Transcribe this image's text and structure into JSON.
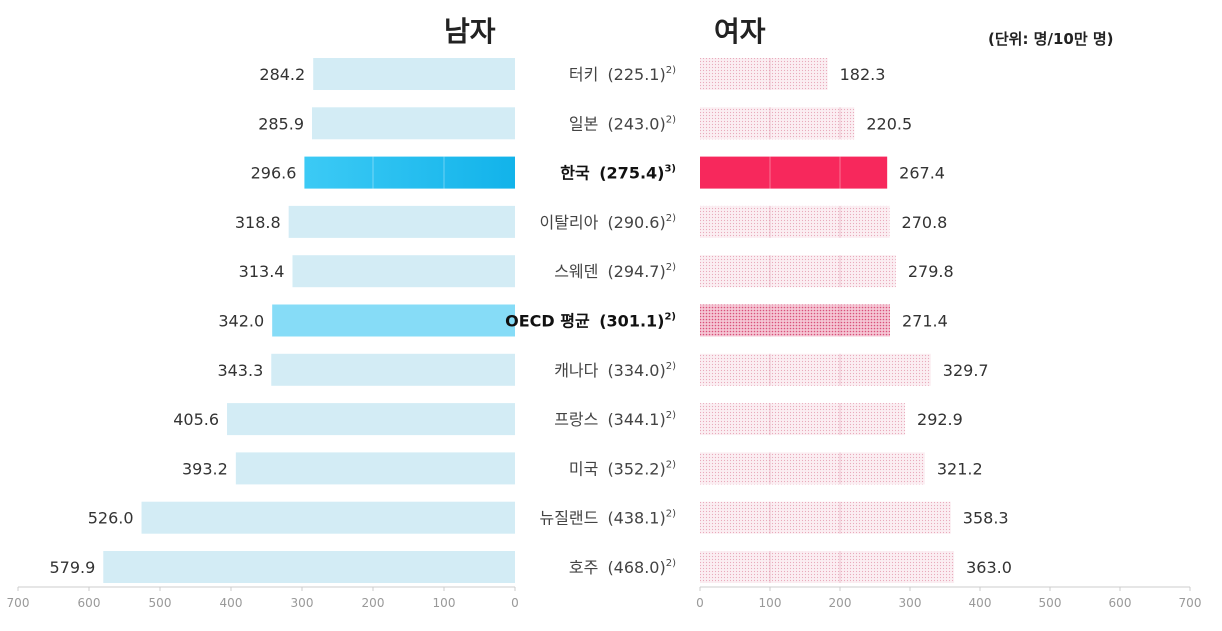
{
  "header": {
    "male_title": "남자",
    "female_title": "여자",
    "unit": "(단위: 명/10만 명)"
  },
  "colors": {
    "male_default": "#d3ecf5",
    "male_korea": "#29bff0",
    "male_oecd": "#86dcf7",
    "female_default": "#f7e1e7",
    "female_korea": "#f7285c",
    "female_oecd": "#e86a8e"
  },
  "chart_data": {
    "type": "bar",
    "layout": "back-to-back horizontal",
    "xlim": [
      0,
      700
    ],
    "ticks": [
      700,
      600,
      500,
      400,
      300,
      200,
      100,
      0
    ],
    "female_ticks": [
      0,
      100,
      200,
      300,
      400,
      500,
      600,
      700
    ],
    "categories": [
      {
        "name": "터키",
        "total": "(225.1)",
        "note": "2)",
        "male": 284.2,
        "female": 182.3,
        "male_label": "284.2",
        "female_label": "182.3",
        "highlight": "none"
      },
      {
        "name": "일본",
        "total": "(243.0)",
        "note": "2)",
        "male": 285.9,
        "female": 220.5,
        "male_label": "285.9",
        "female_label": "220.5",
        "highlight": "none"
      },
      {
        "name": "한국",
        "total": "(275.4)",
        "note": "3)",
        "male": 296.6,
        "female": 267.4,
        "male_label": "296.6",
        "female_label": "267.4",
        "highlight": "korea"
      },
      {
        "name": "이탈리아",
        "total": "(290.6)",
        "note": "2)",
        "male": 318.8,
        "female": 270.8,
        "male_label": "318.8",
        "female_label": "270.8",
        "highlight": "none"
      },
      {
        "name": "스웨덴",
        "total": "(294.7)",
        "note": "2)",
        "male": 313.4,
        "female": 279.8,
        "male_label": "313.4",
        "female_label": "279.8",
        "highlight": "none"
      },
      {
        "name": "OECD 평균",
        "total": "(301.1)",
        "note": "2)",
        "male": 342.0,
        "female": 271.4,
        "male_label": "342.0",
        "female_label": "271.4",
        "highlight": "oecd"
      },
      {
        "name": "캐나다",
        "total": "(334.0)",
        "note": "2)",
        "male": 343.3,
        "female": 329.7,
        "male_label": "343.3",
        "female_label": "329.7",
        "highlight": "none"
      },
      {
        "name": "프랑스",
        "total": "(344.1)",
        "note": "2)",
        "male": 405.6,
        "female": 292.9,
        "male_label": "405.6",
        "female_label": "292.9",
        "highlight": "none"
      },
      {
        "name": "미국",
        "total": "(352.2)",
        "note": "2)",
        "male": 393.2,
        "female": 321.2,
        "male_label": "393.2",
        "female_label": "321.2",
        "highlight": "none"
      },
      {
        "name": "뉴질랜드",
        "total": "(438.1)",
        "note": "2)",
        "male": 526.0,
        "female": 358.3,
        "male_label": "526.0",
        "female_label": "358.3",
        "highlight": "none"
      },
      {
        "name": "호주",
        "total": "(468.0)",
        "note": "2)",
        "male": 579.9,
        "female": 363.0,
        "male_label": "579.9",
        "female_label": "363.0",
        "highlight": "none"
      }
    ]
  }
}
